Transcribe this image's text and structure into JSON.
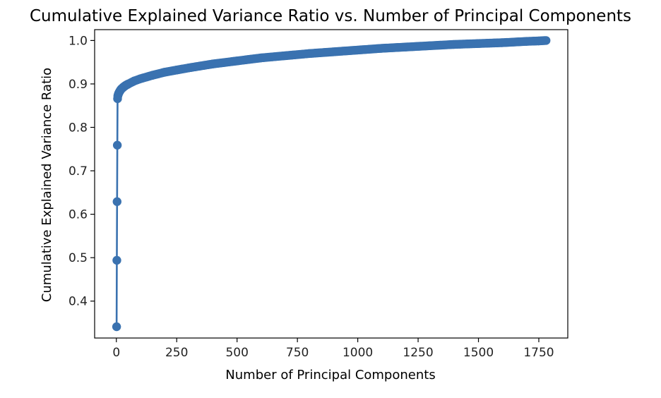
{
  "chart_data": {
    "type": "line",
    "title": "Cumulative Explained Variance Ratio vs. Number of Principal Components",
    "xlabel": "Number of Principal Components",
    "ylabel": "Cumulative Explained Variance Ratio",
    "xlim": [
      -90,
      1870
    ],
    "ylim": [
      0.315,
      1.025
    ],
    "xticks": [
      0,
      250,
      500,
      750,
      1000,
      1250,
      1500,
      1750
    ],
    "xtick_labels": [
      "0",
      "250",
      "500",
      "750",
      "1000",
      "1250",
      "1500",
      "1750"
    ],
    "yticks": [
      0.4,
      0.5,
      0.6,
      0.7,
      0.8,
      0.9,
      1.0
    ],
    "ytick_labels": [
      "0.4",
      "0.5",
      "0.6",
      "0.7",
      "0.8",
      "0.9",
      "1.0"
    ],
    "grid": false,
    "marker": "circle",
    "series": [
      {
        "color": "#3a72b0",
        "x": [
          1,
          2,
          3,
          4,
          5,
          6,
          8,
          10,
          15,
          20,
          30,
          40,
          50,
          75,
          100,
          150,
          200,
          250,
          300,
          400,
          500,
          600,
          700,
          800,
          900,
          1000,
          1100,
          1200,
          1300,
          1400,
          1500,
          1600,
          1700,
          1750,
          1780
        ],
        "y": [
          0.341,
          0.494,
          0.629,
          0.759,
          0.866,
          0.872,
          0.876,
          0.879,
          0.884,
          0.888,
          0.893,
          0.897,
          0.9,
          0.907,
          0.912,
          0.92,
          0.927,
          0.932,
          0.937,
          0.946,
          0.953,
          0.96,
          0.965,
          0.97,
          0.974,
          0.978,
          0.982,
          0.985,
          0.988,
          0.991,
          0.993,
          0.995,
          0.998,
          0.999,
          1.0
        ]
      }
    ]
  }
}
